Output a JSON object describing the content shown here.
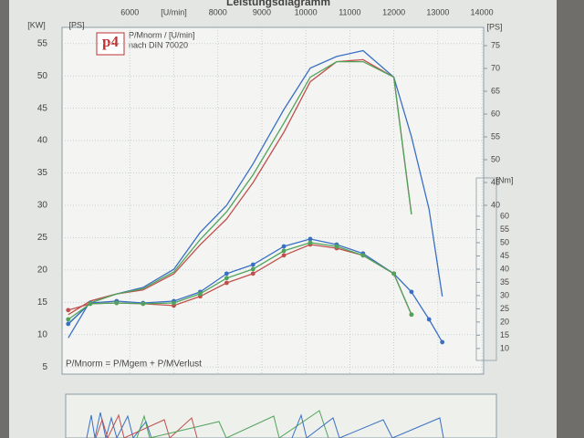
{
  "chart_data": {
    "type": "line",
    "title": "Leistungsdiagramm",
    "logo": "p4",
    "legend_lines": [
      "P/Mnorm / [U/min]",
      "nach DIN 70020"
    ],
    "formula": "P/Mnorm = P/Mgem + P/MVerlust",
    "ylabel": "[KW]",
    "y2label": "[PS]",
    "y3label": "[Nm]",
    "x": [
      4600,
      5100,
      5700,
      6300,
      7000,
      7600,
      8200,
      8800,
      9500,
      10100,
      10700,
      11300,
      12000,
      12400,
      12800,
      13100
    ],
    "xlim": [
      4460,
      14040
    ],
    "xticks": [
      6000,
      {
        "value": 7000,
        "label": "[U/min]"
      },
      8000,
      9000,
      10000,
      11000,
      12000,
      13000,
      14000
    ],
    "ylim": [
      3.9,
      57.5
    ],
    "yticks": [
      5,
      10,
      15,
      20,
      25,
      30,
      35,
      40,
      45,
      50,
      55
    ],
    "y2lim": [
      3,
      79
    ],
    "y2ticks": [
      40,
      45,
      50,
      55,
      60,
      65,
      70,
      75
    ],
    "y3lim": [
      0.3,
      131.4
    ],
    "y3ticks": [
      10,
      15,
      20,
      25,
      30,
      35,
      40,
      45,
      50,
      55,
      60
    ],
    "grid": true,
    "series": [
      {
        "color": "#3a6fc4",
        "axis": "y",
        "values": [
          9.5,
          15.2,
          16.3,
          17.3,
          20.1,
          25.8,
          30.0,
          36.4,
          44.8,
          51.2,
          53.0,
          53.9,
          49.8,
          40.6,
          29.4,
          15.9
        ]
      },
      {
        "color": "#c0504d",
        "axis": "y",
        "values": [
          13.1,
          15.2,
          16.3,
          16.9,
          19.4,
          23.9,
          27.9,
          33.5,
          41.3,
          49.1,
          52.2,
          52.5,
          49.8,
          28.6,
          null,
          null
        ]
      },
      {
        "color": "#4fa35a",
        "axis": "y",
        "values": [
          11.6,
          14.9,
          16.3,
          17.1,
          19.7,
          24.7,
          29.0,
          34.7,
          42.7,
          49.8,
          52.2,
          52.2,
          49.8,
          28.6,
          null,
          null
        ]
      },
      {
        "color": "#3a6fc4",
        "axis": "y3",
        "markers": true,
        "values": [
          19.3,
          27.2,
          27.9,
          27.2,
          27.9,
          31.4,
          38.3,
          41.7,
          48.6,
          51.4,
          49.3,
          45.9,
          38.3,
          31.4,
          21.0,
          12.4
        ]
      },
      {
        "color": "#c0504d",
        "axis": "y3",
        "markers": true,
        "values": [
          24.5,
          26.9,
          27.2,
          26.9,
          26.2,
          29.7,
          34.8,
          38.3,
          45.2,
          49.3,
          47.9,
          45.2,
          38.3,
          22.8,
          null,
          null
        ]
      },
      {
        "color": "#4fa35a",
        "axis": "y3",
        "markers": true,
        "values": [
          21.0,
          26.9,
          27.2,
          26.9,
          27.2,
          30.7,
          36.6,
          40.0,
          46.9,
          50.0,
          48.6,
          45.2,
          38.3,
          22.8,
          null,
          null
        ]
      }
    ]
  }
}
